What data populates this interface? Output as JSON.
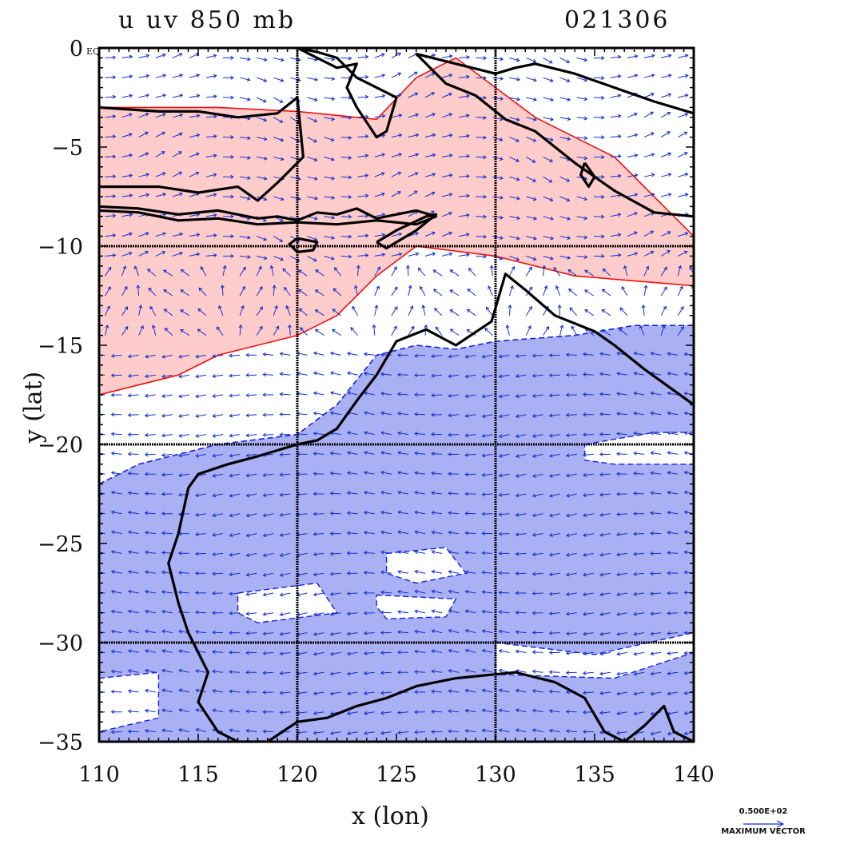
{
  "title": {
    "left": "u uv 850 mb",
    "right": "021306"
  },
  "axes": {
    "xlabel": "x (lon)",
    "ylabel": "y (lat)",
    "xlim": [
      110,
      140
    ],
    "ylim": [
      -35,
      0
    ],
    "xticks": [
      "110",
      "115",
      "120",
      "125",
      "130",
      "135",
      "140"
    ],
    "yticks": [
      "0",
      "-5",
      "-10",
      "-15",
      "-20",
      "-25",
      "-30",
      "-35"
    ],
    "y_top_suffix": "EQ",
    "grid_lon": [
      120,
      130
    ],
    "grid_lat": [
      -10,
      -20,
      -30
    ]
  },
  "legend": {
    "value": "0.500E+02",
    "label": "MAXIMUM VECTOR"
  },
  "colors": {
    "positive_fill": "#ffcccc",
    "positive_contour": "#ee1111",
    "negative_fill": "#aab0f4",
    "negative_contour": "#1122dd",
    "vector": "#1133cc",
    "coast": "#000000"
  },
  "chart_data": {
    "type": "map",
    "fields": [
      "u wind shading",
      "uv wind vectors"
    ],
    "positive_regions": [
      {
        "lon": [
          110,
          116,
          120,
          124,
          126,
          128,
          132,
          136,
          140,
          140,
          134,
          130,
          126,
          124,
          122,
          120,
          118,
          116,
          114,
          110
        ],
        "lat": [
          -3,
          -3,
          -3.2,
          -3.6,
          -1.5,
          -0.5,
          -3.5,
          -5.5,
          -9.5,
          -12,
          -11.5,
          -10.5,
          -10,
          -11.5,
          -13.5,
          -14.5,
          -15,
          -15.5,
          -16.5,
          -17.5
        ]
      }
    ],
    "negative_regions": [
      {
        "lon": [
          110,
          112,
          116,
          120,
          122,
          124,
          126,
          128,
          130,
          134,
          137,
          140,
          140,
          110
        ],
        "lat": [
          -22,
          -21,
          -20,
          -19.5,
          -18,
          -15.5,
          -15,
          -15.2,
          -14.8,
          -14.5,
          -14,
          -14,
          -35,
          -35
        ]
      }
    ],
    "mean_flow": "easterly south of -14, westerly north of -12"
  }
}
